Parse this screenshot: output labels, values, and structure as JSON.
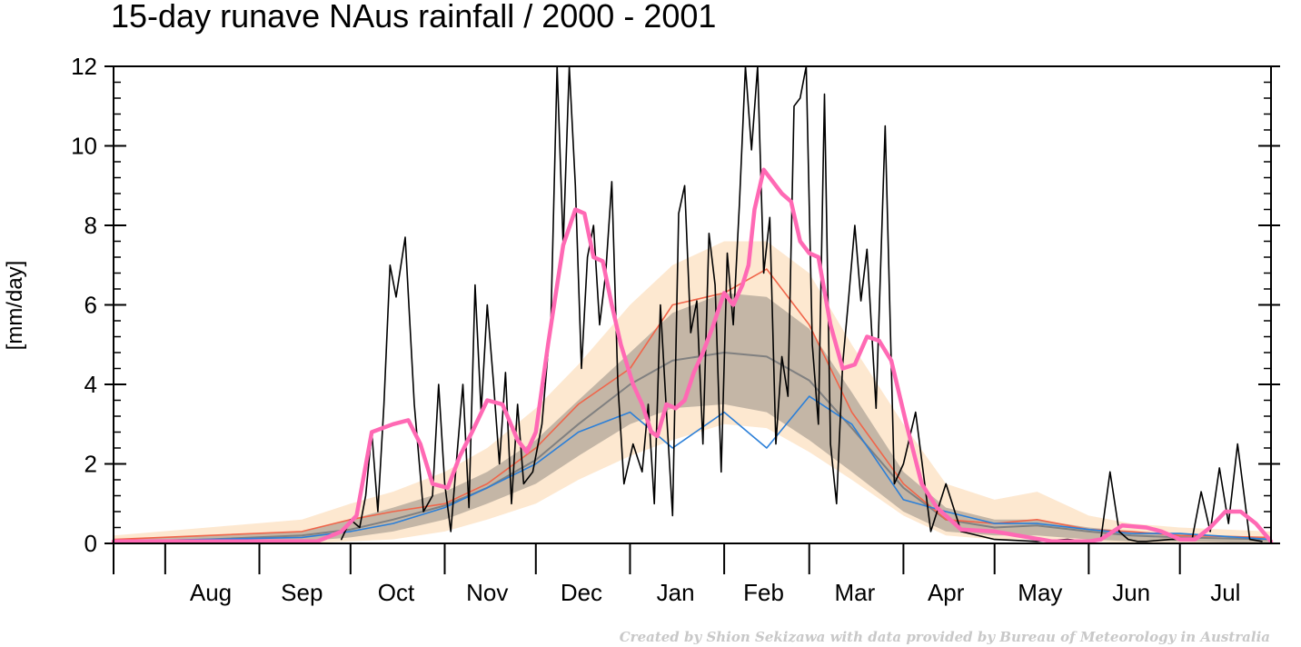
{
  "chart_data": {
    "type": "line",
    "title": "15-day runave NAus rainfall  /  2000 - 2001",
    "ylabel": "[mm/day]",
    "xlabel": "",
    "ylim": [
      0,
      12
    ],
    "yticks": [
      "0",
      "2",
      "4",
      "6",
      "8",
      "10",
      "12"
    ],
    "xlim": [
      "2000-07-15",
      "2001-07-31"
    ],
    "month_ticks": [
      "2000-08-01",
      "2000-09-01",
      "2000-10-01",
      "2000-11-01",
      "2000-12-01",
      "2001-01-01",
      "2001-02-01",
      "2001-03-01",
      "2001-04-01",
      "2001-05-01",
      "2001-06-01",
      "2001-07-01",
      "2001-08-01"
    ],
    "month_labels": [
      {
        "label": "Aug",
        "date": "2000-08-16"
      },
      {
        "label": "Sep",
        "date": "2000-09-15"
      },
      {
        "label": "Oct",
        "date": "2000-10-16"
      },
      {
        "label": "Nov",
        "date": "2000-11-15"
      },
      {
        "label": "Dec",
        "date": "2000-12-16"
      },
      {
        "label": "Jan",
        "date": "2001-01-16"
      },
      {
        "label": "Feb",
        "date": "2001-02-14"
      },
      {
        "label": "Mar",
        "date": "2001-03-16"
      },
      {
        "label": "Apr",
        "date": "2001-04-15"
      },
      {
        "label": "May",
        "date": "2001-05-16"
      },
      {
        "label": "Jun",
        "date": "2001-06-15"
      },
      {
        "label": "Jul",
        "date": "2001-07-16"
      }
    ],
    "colors": {
      "outer_band": "#fde8d0",
      "inner_band": "#c4b6a6",
      "climatology_line": "#808080",
      "red_line": "#f0654a",
      "blue_line": "#2b7fd8",
      "daily_line": "#000000",
      "runave_line": "#ff69b4"
    },
    "series": [
      {
        "role": "outer_band",
        "dates": [
          "2000-07-15",
          "2000-08-15",
          "2000-09-15",
          "2000-10-01",
          "2000-10-15",
          "2000-11-01",
          "2000-11-15",
          "2000-12-01",
          "2000-12-15",
          "2001-01-01",
          "2001-01-15",
          "2001-02-01",
          "2001-02-15",
          "2001-03-01",
          "2001-03-15",
          "2001-04-01",
          "2001-04-15",
          "2001-05-01",
          "2001-05-15",
          "2001-06-01",
          "2001-06-15",
          "2001-07-01",
          "2001-07-31"
        ],
        "upper": [
          0.2,
          0.4,
          0.6,
          1.0,
          1.3,
          1.8,
          2.4,
          3.4,
          4.5,
          6.0,
          7.0,
          7.6,
          7.6,
          6.8,
          5.0,
          3.0,
          1.5,
          1.1,
          1.3,
          0.7,
          0.5,
          0.4,
          0.3
        ],
        "lower": [
          0.0,
          0.0,
          0.0,
          0.05,
          0.1,
          0.3,
          0.6,
          1.0,
          1.6,
          2.2,
          2.6,
          3.0,
          2.9,
          2.3,
          1.6,
          0.7,
          0.2,
          0.1,
          0.1,
          0.05,
          0.0,
          0.0,
          0.0
        ]
      },
      {
        "role": "inner_band",
        "dates": [
          "2000-07-15",
          "2000-08-15",
          "2000-09-15",
          "2000-10-01",
          "2000-10-15",
          "2000-11-01",
          "2000-11-15",
          "2000-12-01",
          "2000-12-15",
          "2001-01-01",
          "2001-01-15",
          "2001-02-01",
          "2001-02-15",
          "2001-03-01",
          "2001-03-15",
          "2001-04-01",
          "2001-04-15",
          "2001-05-01",
          "2001-05-15",
          "2001-06-01",
          "2001-06-15",
          "2001-07-01",
          "2001-07-31"
        ],
        "upper": [
          0.1,
          0.2,
          0.3,
          0.6,
          0.9,
          1.3,
          1.8,
          2.6,
          3.6,
          4.8,
          5.8,
          6.3,
          6.2,
          5.4,
          3.8,
          1.8,
          0.9,
          0.6,
          0.6,
          0.4,
          0.3,
          0.25,
          0.15
        ],
        "lower": [
          0.0,
          0.0,
          0.05,
          0.15,
          0.3,
          0.6,
          1.0,
          1.5,
          2.2,
          3.0,
          3.4,
          3.5,
          3.3,
          2.6,
          1.8,
          0.8,
          0.3,
          0.2,
          0.2,
          0.1,
          0.05,
          0.05,
          0.0
        ]
      },
      {
        "role": "climatology_line",
        "dates": [
          "2000-07-15",
          "2000-08-15",
          "2000-09-15",
          "2000-10-01",
          "2000-10-15",
          "2000-11-01",
          "2000-11-15",
          "2000-12-01",
          "2000-12-15",
          "2001-01-01",
          "2001-01-15",
          "2001-02-01",
          "2001-02-15",
          "2001-03-01",
          "2001-03-15",
          "2001-04-01",
          "2001-04-15",
          "2001-05-01",
          "2001-05-15",
          "2001-06-01",
          "2001-06-15",
          "2001-07-01",
          "2001-07-31"
        ],
        "values": [
          0.05,
          0.1,
          0.2,
          0.35,
          0.6,
          0.95,
          1.4,
          2.1,
          3.0,
          4.0,
          4.6,
          4.8,
          4.7,
          4.1,
          2.9,
          1.4,
          0.6,
          0.4,
          0.45,
          0.3,
          0.2,
          0.15,
          0.1
        ]
      },
      {
        "role": "red_line",
        "dates": [
          "2000-07-15",
          "2000-08-15",
          "2000-09-15",
          "2000-10-01",
          "2000-10-15",
          "2000-11-01",
          "2000-11-15",
          "2000-12-01",
          "2000-12-15",
          "2001-01-01",
          "2001-01-15",
          "2001-02-01",
          "2001-02-15",
          "2001-03-01",
          "2001-03-15",
          "2001-04-01",
          "2001-04-15",
          "2001-05-01",
          "2001-05-15",
          "2001-06-01",
          "2001-06-15",
          "2001-07-01",
          "2001-07-31"
        ],
        "values": [
          0.1,
          0.2,
          0.3,
          0.6,
          0.8,
          1.0,
          1.5,
          2.4,
          3.5,
          4.4,
          6.0,
          6.3,
          6.9,
          5.5,
          3.3,
          1.5,
          0.6,
          0.5,
          0.6,
          0.35,
          0.3,
          0.2,
          0.15
        ]
      },
      {
        "role": "blue_line",
        "dates": [
          "2000-07-15",
          "2000-08-15",
          "2000-09-15",
          "2000-10-01",
          "2000-10-15",
          "2000-11-01",
          "2000-11-15",
          "2000-12-01",
          "2000-12-15",
          "2001-01-01",
          "2001-01-15",
          "2001-02-01",
          "2001-02-15",
          "2001-03-01",
          "2001-03-15",
          "2001-04-01",
          "2001-04-15",
          "2001-05-01",
          "2001-05-15",
          "2001-06-01",
          "2001-06-15",
          "2001-07-01",
          "2001-07-31"
        ],
        "values": [
          0.05,
          0.1,
          0.15,
          0.3,
          0.5,
          0.9,
          1.4,
          2.0,
          2.8,
          3.3,
          2.4,
          3.3,
          2.4,
          3.7,
          3.0,
          1.1,
          0.8,
          0.5,
          0.5,
          0.35,
          0.25,
          0.25,
          0.1
        ]
      },
      {
        "role": "daily_line",
        "dates": [
          "2000-09-28",
          "2000-10-01",
          "2000-10-04",
          "2000-10-06",
          "2000-10-08",
          "2000-10-10",
          "2000-10-12",
          "2000-10-14",
          "2000-10-16",
          "2000-10-19",
          "2000-10-22",
          "2000-10-25",
          "2000-10-28",
          "2000-10-30",
          "2000-11-01",
          "2000-11-03",
          "2000-11-05",
          "2000-11-07",
          "2000-11-09",
          "2000-11-11",
          "2000-11-13",
          "2000-11-15",
          "2000-11-17",
          "2000-11-19",
          "2000-11-21",
          "2000-11-23",
          "2000-11-25",
          "2000-11-27",
          "2000-11-30",
          "2000-12-03",
          "2000-12-06",
          "2000-12-08",
          "2000-12-10",
          "2000-12-12",
          "2000-12-14",
          "2000-12-16",
          "2000-12-18",
          "2000-12-20",
          "2000-12-22",
          "2000-12-24",
          "2000-12-26",
          "2000-12-28",
          "2000-12-30",
          "2001-01-02",
          "2001-01-05",
          "2001-01-07",
          "2001-01-09",
          "2001-01-11",
          "2001-01-13",
          "2001-01-15",
          "2001-01-17",
          "2001-01-19",
          "2001-01-21",
          "2001-01-23",
          "2001-01-25",
          "2001-01-27",
          "2001-01-29",
          "2001-01-31",
          "2001-02-02",
          "2001-02-04",
          "2001-02-06",
          "2001-02-08",
          "2001-02-10",
          "2001-02-12",
          "2001-02-14",
          "2001-02-16",
          "2001-02-18",
          "2001-02-20",
          "2001-02-22",
          "2001-02-24",
          "2001-02-26",
          "2001-02-28",
          "2001-03-02",
          "2001-03-04",
          "2001-03-06",
          "2001-03-08",
          "2001-03-10",
          "2001-03-12",
          "2001-03-14",
          "2001-03-16",
          "2001-03-18",
          "2001-03-20",
          "2001-03-23",
          "2001-03-26",
          "2001-03-29",
          "2001-04-01",
          "2001-04-05",
          "2001-04-10",
          "2001-04-15",
          "2001-04-20",
          "2001-05-01",
          "2001-05-15",
          "2001-05-25",
          "2001-06-01",
          "2001-06-05",
          "2001-06-08",
          "2001-06-11",
          "2001-06-14",
          "2001-06-17",
          "2001-06-20",
          "2001-06-28",
          "2001-07-05",
          "2001-07-08",
          "2001-07-11",
          "2001-07-14",
          "2001-07-17",
          "2001-07-20",
          "2001-07-24",
          "2001-07-28"
        ],
        "values": [
          0.1,
          0.6,
          0.4,
          1.2,
          2.8,
          0.8,
          3.5,
          7.0,
          6.2,
          7.7,
          3.5,
          0.8,
          1.2,
          4.0,
          1.5,
          0.3,
          2.2,
          4.0,
          0.9,
          6.5,
          3.3,
          6.0,
          4.1,
          2.0,
          4.3,
          1.0,
          3.5,
          1.5,
          1.8,
          3.0,
          5.7,
          12.0,
          7.5,
          12.0,
          9.0,
          4.4,
          7.2,
          8.0,
          5.5,
          6.8,
          9.1,
          4.0,
          1.5,
          2.5,
          1.8,
          3.5,
          1.0,
          6.0,
          3.3,
          0.7,
          8.3,
          9.0,
          5.3,
          6.1,
          2.5,
          7.8,
          6.5,
          1.8,
          7.3,
          5.5,
          8.5,
          12.0,
          9.9,
          12.0,
          6.8,
          8.2,
          2.5,
          4.7,
          3.7,
          11.0,
          11.2,
          12.0,
          5.0,
          3.0,
          11.3,
          2.5,
          1.0,
          4.5,
          6.2,
          8.0,
          6.1,
          7.4,
          3.4,
          10.5,
          1.5,
          2.0,
          3.3,
          0.3,
          1.5,
          0.3,
          0.1,
          0.05,
          0.1,
          0.05,
          0.1,
          1.8,
          0.3,
          0.1,
          0.05,
          0.05,
          0.1,
          0.1,
          1.3,
          0.3,
          1.9,
          0.5,
          2.5,
          0.1,
          0.05
        ]
      },
      {
        "role": "runave_line",
        "dates": [
          "2000-07-15",
          "2000-09-20",
          "2000-09-28",
          "2000-10-03",
          "2000-10-08",
          "2000-10-15",
          "2000-10-20",
          "2000-10-24",
          "2000-10-28",
          "2000-11-02",
          "2000-11-06",
          "2000-11-10",
          "2000-11-15",
          "2000-11-20",
          "2000-11-25",
          "2000-11-28",
          "2000-12-01",
          "2000-12-05",
          "2000-12-10",
          "2000-12-14",
          "2000-12-17",
          "2000-12-20",
          "2000-12-23",
          "2000-12-26",
          "2000-12-29",
          "2001-01-02",
          "2001-01-05",
          "2001-01-08",
          "2001-01-10",
          "2001-01-13",
          "2001-01-16",
          "2001-01-19",
          "2001-01-22",
          "2001-01-25",
          "2001-01-28",
          "2001-02-01",
          "2001-02-04",
          "2001-02-07",
          "2001-02-09",
          "2001-02-11",
          "2001-02-14",
          "2001-02-17",
          "2001-02-20",
          "2001-02-23",
          "2001-02-26",
          "2001-03-01",
          "2001-03-04",
          "2001-03-08",
          "2001-03-12",
          "2001-03-16",
          "2001-03-20",
          "2001-03-24",
          "2001-03-28",
          "2001-04-02",
          "2001-04-07",
          "2001-04-12",
          "2001-04-20",
          "2001-05-01",
          "2001-05-20",
          "2001-06-01",
          "2001-06-05",
          "2001-06-12",
          "2001-06-20",
          "2001-06-25",
          "2001-07-01",
          "2001-07-06",
          "2001-07-11",
          "2001-07-16",
          "2001-07-21",
          "2001-07-26",
          "2001-07-31"
        ],
        "values": [
          0.05,
          0.05,
          0.3,
          0.7,
          2.8,
          3.0,
          3.1,
          2.5,
          1.5,
          1.4,
          2.2,
          2.8,
          3.6,
          3.5,
          2.6,
          2.3,
          2.8,
          5.0,
          7.5,
          8.4,
          8.3,
          7.2,
          7.1,
          6.0,
          5.0,
          4.0,
          3.5,
          2.8,
          2.7,
          3.5,
          3.4,
          3.6,
          4.3,
          4.8,
          5.4,
          6.3,
          6.0,
          6.5,
          7.0,
          8.4,
          9.4,
          9.1,
          8.8,
          8.6,
          7.6,
          7.3,
          7.2,
          5.5,
          4.4,
          4.5,
          5.2,
          5.1,
          4.6,
          3.0,
          1.5,
          0.9,
          0.35,
          0.3,
          0.05,
          0.05,
          0.1,
          0.45,
          0.4,
          0.3,
          0.1,
          0.1,
          0.4,
          0.8,
          0.8,
          0.5,
          0.05
        ]
      }
    ],
    "credit": "Created by Shion Sekizawa with data provided by Bureau of Meteorology in Australia"
  }
}
